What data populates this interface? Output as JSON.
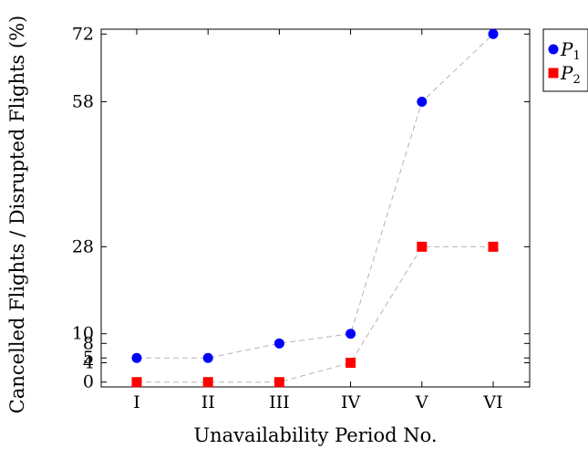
{
  "chart_data": {
    "type": "line",
    "title": "",
    "xlabel": "Unavailability Period No.",
    "ylabel": "Cancelled Flights / Disrupted Flights (%)",
    "categories": [
      "I",
      "II",
      "III",
      "IV",
      "V",
      "VI"
    ],
    "ylim": [
      -1,
      73
    ],
    "yticks": [
      0,
      4,
      5,
      8,
      10,
      28,
      58,
      72
    ],
    "grid": false,
    "legend_position": "top-right-outside",
    "series": [
      {
        "name": "P1",
        "name_letter": "P",
        "name_sub": "1",
        "marker": "circle",
        "color": "#0000ff",
        "line_color": "#b3b3b3",
        "values": [
          5,
          5,
          8,
          10,
          58,
          72
        ]
      },
      {
        "name": "P2",
        "name_letter": "P",
        "name_sub": "2",
        "marker": "square",
        "color": "#ff0000",
        "line_color": "#b3b3b3",
        "values": [
          0,
          0,
          0,
          4,
          28,
          28
        ]
      }
    ]
  }
}
